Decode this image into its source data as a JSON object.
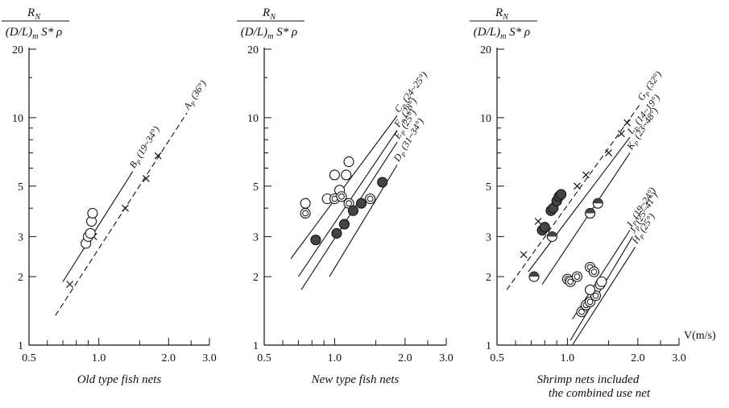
{
  "chart_data": [
    {
      "type": "scatter",
      "scale": "log-log",
      "ylabel": "R_N / (D/L)_m S* ρ",
      "xlabel": "",
      "xlim": [
        0.5,
        3.0
      ],
      "ylim": [
        1,
        20
      ],
      "x_ticks": [
        "0.5",
        "1.0",
        "2.0",
        "3.0"
      ],
      "y_ticks": [
        "1",
        "2",
        "3",
        "5",
        "10",
        "20"
      ],
      "caption": "Old type fish nets",
      "lines": [
        {
          "label": "B_P (19~34°)",
          "style": "solid",
          "x": [
            0.7,
            1.4
          ],
          "y": [
            1.9,
            5.8
          ]
        },
        {
          "label": "A_P (36°)",
          "style": "dashed",
          "x": [
            0.65,
            2.4
          ],
          "y": [
            1.35,
            10.5
          ]
        }
      ],
      "crosses": [
        {
          "x": 0.75,
          "y": 1.85
        },
        {
          "x": 0.95,
          "y": 3.0
        },
        {
          "x": 1.3,
          "y": 4.0
        },
        {
          "x": 1.6,
          "y": 5.4
        },
        {
          "x": 1.8,
          "y": 6.8
        }
      ],
      "points": [
        {
          "x": 0.88,
          "y": 2.8,
          "marker": "open"
        },
        {
          "x": 0.9,
          "y": 3.0,
          "marker": "open"
        },
        {
          "x": 0.92,
          "y": 3.1,
          "marker": "open"
        },
        {
          "x": 0.93,
          "y": 3.5,
          "marker": "open"
        },
        {
          "x": 0.94,
          "y": 3.8,
          "marker": "open"
        }
      ]
    },
    {
      "type": "scatter",
      "scale": "log-log",
      "ylabel": "R_N / (D/L)_m S* ρ",
      "xlabel": "",
      "xlim": [
        0.5,
        3.0
      ],
      "ylim": [
        1,
        20
      ],
      "x_ticks": [
        "0.5",
        "1.0",
        "2.0",
        "3.0"
      ],
      "y_ticks": [
        "1",
        "2",
        "3",
        "5",
        "10",
        "20"
      ],
      "caption": "New type fish nets",
      "lines": [
        {
          "label": "C_P (24~25°)",
          "style": "solid",
          "x": [
            0.65,
            1.85
          ],
          "y": [
            2.4,
            10.2
          ]
        },
        {
          "label": "F_P (28°)",
          "style": "solid",
          "x": [
            0.7,
            1.85
          ],
          "y": [
            2.0,
            8.8
          ]
        },
        {
          "label": "E_P (25°)",
          "style": "solid",
          "x": [
            0.72,
            1.85
          ],
          "y": [
            1.75,
            7.8
          ]
        },
        {
          "label": "D_P (31~34°)",
          "style": "solid",
          "x": [
            0.95,
            1.85
          ],
          "y": [
            2.0,
            6.2
          ]
        }
      ],
      "points": [
        {
          "x": 0.75,
          "y": 4.2,
          "marker": "open"
        },
        {
          "x": 0.75,
          "y": 3.8,
          "marker": "double"
        },
        {
          "x": 0.83,
          "y": 2.9,
          "marker": "filled"
        },
        {
          "x": 0.93,
          "y": 4.4,
          "marker": "open"
        },
        {
          "x": 1.0,
          "y": 5.6,
          "marker": "open"
        },
        {
          "x": 1.0,
          "y": 4.4,
          "marker": "double"
        },
        {
          "x": 1.02,
          "y": 3.1,
          "marker": "filled"
        },
        {
          "x": 1.05,
          "y": 4.8,
          "marker": "open"
        },
        {
          "x": 1.07,
          "y": 4.5,
          "marker": "double"
        },
        {
          "x": 1.1,
          "y": 3.4,
          "marker": "filled"
        },
        {
          "x": 1.12,
          "y": 5.6,
          "marker": "open"
        },
        {
          "x": 1.15,
          "y": 6.4,
          "marker": "open"
        },
        {
          "x": 1.15,
          "y": 4.2,
          "marker": "double"
        },
        {
          "x": 1.2,
          "y": 3.9,
          "marker": "filled"
        },
        {
          "x": 1.3,
          "y": 4.2,
          "marker": "filled"
        },
        {
          "x": 1.42,
          "y": 4.4,
          "marker": "double"
        },
        {
          "x": 1.6,
          "y": 5.2,
          "marker": "filled"
        }
      ]
    },
    {
      "type": "scatter",
      "scale": "log-log",
      "ylabel": "R_N / (D/L)_m S* ρ",
      "xlabel": "V(m/s)",
      "xlim": [
        0.5,
        3.0
      ],
      "ylim": [
        1,
        20
      ],
      "x_ticks": [
        "0.5",
        "1.0",
        "2.0",
        "3.0"
      ],
      "y_ticks": [
        "1",
        "2",
        "3",
        "5",
        "10",
        "20"
      ],
      "caption": "Shrimp nets included the combined use net",
      "caption_lines": [
        "Shrimp nets included",
        "the combined use net"
      ],
      "lines": [
        {
          "label": "G_P (32°)",
          "style": "dashed",
          "x": [
            0.55,
            2.05
          ],
          "y": [
            1.75,
            11.5
          ]
        },
        {
          "label": "L_P (14~19°)",
          "style": "solid",
          "x": [
            0.68,
            1.85
          ],
          "y": [
            2.1,
            8.2
          ]
        },
        {
          "label": "K_P (23~48°)",
          "style": "solid",
          "x": [
            0.78,
            1.85
          ],
          "y": [
            1.85,
            7.0
          ]
        },
        {
          "label": "I_P (19~24°)",
          "style": "solid",
          "x": [
            1.05,
            1.85
          ],
          "y": [
            1.3,
            3.2
          ]
        },
        {
          "label": "J_P (25~41°)",
          "style": "solid",
          "x": [
            1.03,
            1.9
          ],
          "y": [
            1.05,
            3.0
          ]
        },
        {
          "label": "H_P (25°)",
          "style": "solid",
          "x": [
            1.05,
            1.95
          ],
          "y": [
            1.0,
            2.7
          ]
        }
      ],
      "crosses": [
        {
          "x": 0.65,
          "y": 2.5
        },
        {
          "x": 0.75,
          "y": 3.5
        },
        {
          "x": 1.1,
          "y": 5.0
        },
        {
          "x": 1.2,
          "y": 5.6
        },
        {
          "x": 1.5,
          "y": 7.0
        },
        {
          "x": 1.7,
          "y": 8.5
        },
        {
          "x": 1.8,
          "y": 9.5
        }
      ],
      "points": [
        {
          "x": 0.78,
          "y": 3.2,
          "marker": "filled"
        },
        {
          "x": 0.8,
          "y": 3.3,
          "marker": "filled"
        },
        {
          "x": 0.85,
          "y": 3.9,
          "marker": "filled"
        },
        {
          "x": 0.87,
          "y": 4.0,
          "marker": "filled"
        },
        {
          "x": 0.9,
          "y": 4.3,
          "marker": "filled"
        },
        {
          "x": 0.92,
          "y": 4.5,
          "marker": "filled"
        },
        {
          "x": 0.94,
          "y": 4.6,
          "marker": "filled"
        },
        {
          "x": 0.86,
          "y": 3.0,
          "marker": "half"
        },
        {
          "x": 0.72,
          "y": 2.0,
          "marker": "half"
        },
        {
          "x": 1.25,
          "y": 3.8,
          "marker": "half"
        },
        {
          "x": 1.35,
          "y": 4.2,
          "marker": "half"
        },
        {
          "x": 1.0,
          "y": 1.95,
          "marker": "double"
        },
        {
          "x": 1.03,
          "y": 1.9,
          "marker": "double"
        },
        {
          "x": 1.1,
          "y": 2.0,
          "marker": "double"
        },
        {
          "x": 1.25,
          "y": 2.2,
          "marker": "double"
        },
        {
          "x": 1.3,
          "y": 2.1,
          "marker": "double"
        },
        {
          "x": 1.15,
          "y": 1.4,
          "marker": "double"
        },
        {
          "x": 1.2,
          "y": 1.5,
          "marker": "double"
        },
        {
          "x": 1.25,
          "y": 1.55,
          "marker": "double"
        },
        {
          "x": 1.32,
          "y": 1.65,
          "marker": "double"
        },
        {
          "x": 1.25,
          "y": 1.75,
          "marker": "open"
        },
        {
          "x": 1.38,
          "y": 1.85,
          "marker": "open"
        },
        {
          "x": 1.4,
          "y": 1.9,
          "marker": "open"
        }
      ]
    }
  ]
}
